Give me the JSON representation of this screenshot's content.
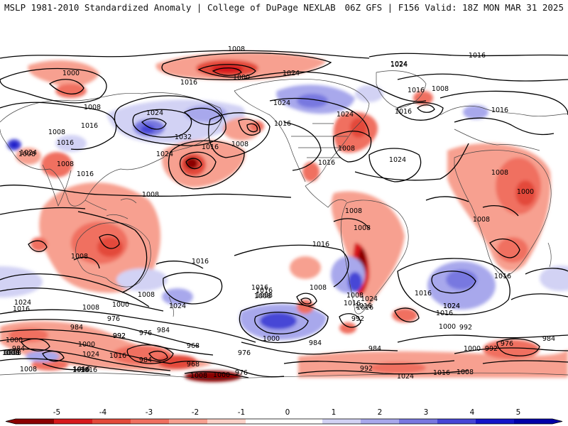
{
  "header": {
    "title_left": "MSLP 1981-2010 Standardized Anomaly | College of DuPage NEXLAB",
    "title_right": "06Z GFS | F156 Valid: 18Z MON MAR 31 2025"
  },
  "colorbar": {
    "ticks": [
      "-5",
      "-4",
      "-3",
      "-2",
      "-1",
      "0",
      "1",
      "2",
      "3",
      "4",
      "5"
    ],
    "colors": [
      "#8b0000",
      "#d7191c",
      "#e34a3a",
      "#f07060",
      "#f7a090",
      "#fcd2c8",
      "#ffffff",
      "#ffffff",
      "#d2d2f4",
      "#a8a8ec",
      "#7878e0",
      "#4646d6",
      "#1414c8",
      "#0000a8"
    ]
  },
  "contour_labels": [
    {
      "id": "l1",
      "text": "1008"
    },
    {
      "id": "l2",
      "text": "1016"
    },
    {
      "id": "l3",
      "text": "1000"
    },
    {
      "id": "l4",
      "text": "1000"
    },
    {
      "id": "l5",
      "text": "1024"
    },
    {
      "id": "l6",
      "text": "1024"
    },
    {
      "id": "l7",
      "text": "1016"
    },
    {
      "id": "l8",
      "text": "1008"
    },
    {
      "id": "l9",
      "text": "1016"
    },
    {
      "id": "l10",
      "text": "1008"
    },
    {
      "id": "l11",
      "text": "1016"
    },
    {
      "id": "l12",
      "text": "1024"
    },
    {
      "id": "l13",
      "text": "1032"
    },
    {
      "id": "l14",
      "text": "1024"
    },
    {
      "id": "l15",
      "text": "1016"
    },
    {
      "id": "l16",
      "text": "1008"
    },
    {
      "id": "l17",
      "text": "1024"
    },
    {
      "id": "l18",
      "text": "1016"
    },
    {
      "id": "l19",
      "text": "1024"
    },
    {
      "id": "l20",
      "text": "1008"
    },
    {
      "id": "l21",
      "text": "1016"
    },
    {
      "id": "l22",
      "text": "1024"
    },
    {
      "id": "l23",
      "text": "1016"
    },
    {
      "id": "l24",
      "text": "1008"
    },
    {
      "id": "l25",
      "text": "1016"
    },
    {
      "id": "l26",
      "text": "1024"
    },
    {
      "id": "l27",
      "text": "1016"
    },
    {
      "id": "l28",
      "text": "1008"
    },
    {
      "id": "l29",
      "text": "1024"
    },
    {
      "id": "l30",
      "text": "1008"
    },
    {
      "id": "l31",
      "text": "1016"
    },
    {
      "id": "l32",
      "text": "1008"
    },
    {
      "id": "l33",
      "text": "1008"
    },
    {
      "id": "l34",
      "text": "1008"
    },
    {
      "id": "l35",
      "text": "1016"
    },
    {
      "id": "l36",
      "text": "1000"
    },
    {
      "id": "l37",
      "text": "1008"
    },
    {
      "id": "l38",
      "text": "1008"
    },
    {
      "id": "l39",
      "text": "1016"
    },
    {
      "id": "l40",
      "text": "1016"
    },
    {
      "id": "l41",
      "text": "1008"
    },
    {
      "id": "l42",
      "text": "1008"
    },
    {
      "id": "l43",
      "text": "1016"
    },
    {
      "id": "l44",
      "text": "1016"
    },
    {
      "id": "l45",
      "text": "1008"
    },
    {
      "id": "l46",
      "text": "1016"
    },
    {
      "id": "l47",
      "text": "1024"
    },
    {
      "id": "l48",
      "text": "1016"
    },
    {
      "id": "l49",
      "text": "1008"
    },
    {
      "id": "l50",
      "text": "1000"
    },
    {
      "id": "l51",
      "text": "1024"
    },
    {
      "id": "l52",
      "text": "1016"
    },
    {
      "id": "l53",
      "text": "1008"
    },
    {
      "id": "l54",
      "text": "1008"
    },
    {
      "id": "l55",
      "text": "1016"
    },
    {
      "id": "l56",
      "text": "1016"
    },
    {
      "id": "l57",
      "text": "1024"
    },
    {
      "id": "l58",
      "text": "1024"
    },
    {
      "id": "l59",
      "text": "1016"
    },
    {
      "id": "l60",
      "text": "1024"
    },
    {
      "id": "l61",
      "text": "1000"
    },
    {
      "id": "l62",
      "text": "992"
    },
    {
      "id": "l63",
      "text": "992"
    },
    {
      "id": "l64",
      "text": "1000"
    },
    {
      "id": "l65",
      "text": "976"
    },
    {
      "id": "l66",
      "text": "984"
    },
    {
      "id": "l67",
      "text": "992"
    },
    {
      "id": "l68",
      "text": "976"
    },
    {
      "id": "l69",
      "text": "984"
    },
    {
      "id": "l70",
      "text": "1000"
    },
    {
      "id": "l71",
      "text": "1024"
    },
    {
      "id": "l72",
      "text": "1016"
    },
    {
      "id": "l73",
      "text": "984"
    },
    {
      "id": "l74",
      "text": "1008"
    },
    {
      "id": "l75",
      "text": "984"
    },
    {
      "id": "l76",
      "text": "968"
    },
    {
      "id": "l77",
      "text": "968"
    },
    {
      "id": "l78",
      "text": "976"
    },
    {
      "id": "l79",
      "text": "984"
    },
    {
      "id": "l80",
      "text": "1008"
    },
    {
      "id": "l81",
      "text": "1016"
    },
    {
      "id": "l82",
      "text": "1008"
    },
    {
      "id": "l83",
      "text": "1000"
    },
    {
      "id": "l84",
      "text": "976"
    },
    {
      "id": "l85",
      "text": "992"
    },
    {
      "id": "l86",
      "text": "1024"
    },
    {
      "id": "l87",
      "text": "1016"
    },
    {
      "id": "l88",
      "text": "1008"
    },
    {
      "id": "l89",
      "text": "1000"
    },
    {
      "id": "l90",
      "text": "992"
    },
    {
      "id": "l91",
      "text": "976"
    },
    {
      "id": "l92",
      "text": "984"
    },
    {
      "id": "l93",
      "text": "1000"
    },
    {
      "id": "l94",
      "text": "992"
    },
    {
      "id": "l95",
      "text": "1008"
    },
    {
      "id": "l96",
      "text": "1008"
    },
    {
      "id": "l97",
      "text": "1016"
    },
    {
      "id": "l98",
      "text": "1016"
    },
    {
      "id": "l99",
      "text": "1008"
    },
    {
      "id": "l100",
      "text": "984"
    }
  ]
}
